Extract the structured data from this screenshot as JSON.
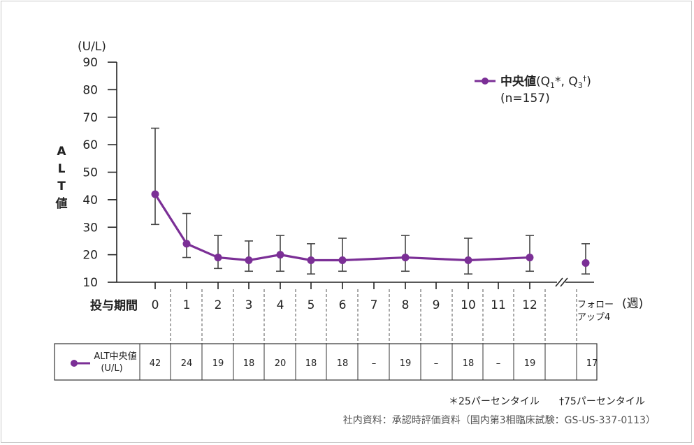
{
  "chart_data": {
    "type": "line",
    "title": "",
    "ylabel": "ALT値",
    "yunit": "(U/L)",
    "xlabel": "投与期間",
    "xunit": "(週)",
    "ylim": [
      10,
      90
    ],
    "yticks": [
      10,
      20,
      30,
      40,
      50,
      60,
      70,
      80,
      90
    ],
    "categories": [
      "0",
      "1",
      "2",
      "3",
      "4",
      "5",
      "6",
      "7",
      "8",
      "9",
      "10",
      "11",
      "12",
      "フォロー\nアップ4"
    ],
    "series": [
      {
        "name": "中央値(Q1*, Q3†)",
        "n_label": "(n=157)",
        "color": "#7b2f96",
        "points": [
          {
            "x": "0",
            "median": 42,
            "q1": 31,
            "q3": 66
          },
          {
            "x": "1",
            "median": 24,
            "q1": 19,
            "q3": 35
          },
          {
            "x": "2",
            "median": 19,
            "q1": 15,
            "q3": 27
          },
          {
            "x": "3",
            "median": 18,
            "q1": 14,
            "q3": 25
          },
          {
            "x": "4",
            "median": 20,
            "q1": 14,
            "q3": 27
          },
          {
            "x": "5",
            "median": 18,
            "q1": 13,
            "q3": 24
          },
          {
            "x": "6",
            "median": 18,
            "q1": 14,
            "q3": 26
          },
          {
            "x": "8",
            "median": 19,
            "q1": 14,
            "q3": 27
          },
          {
            "x": "10",
            "median": 18,
            "q1": 13,
            "q3": 26
          },
          {
            "x": "12",
            "median": 19,
            "q1": 14,
            "q3": 27
          },
          {
            "x": "フォロー\nアップ4",
            "median": 17,
            "q1": 13,
            "q3": 24,
            "separate": true
          }
        ]
      }
    ],
    "table": {
      "row_label_line1": "ALT中央値",
      "row_label_line2": "(U/L)",
      "values": [
        "42",
        "24",
        "19",
        "18",
        "20",
        "18",
        "18",
        "–",
        "19",
        "–",
        "18",
        "–",
        "19",
        "",
        "17"
      ]
    },
    "footnotes": {
      "q1_note": "＊25パーセンタイル",
      "q3_note": "†75パーセンタイル",
      "source": "社内資料：承認時評価資料（国内第3相臨床試験：GS-US-337-0113）"
    },
    "axis_break": true,
    "grid": false,
    "legend_position": "top-right"
  }
}
